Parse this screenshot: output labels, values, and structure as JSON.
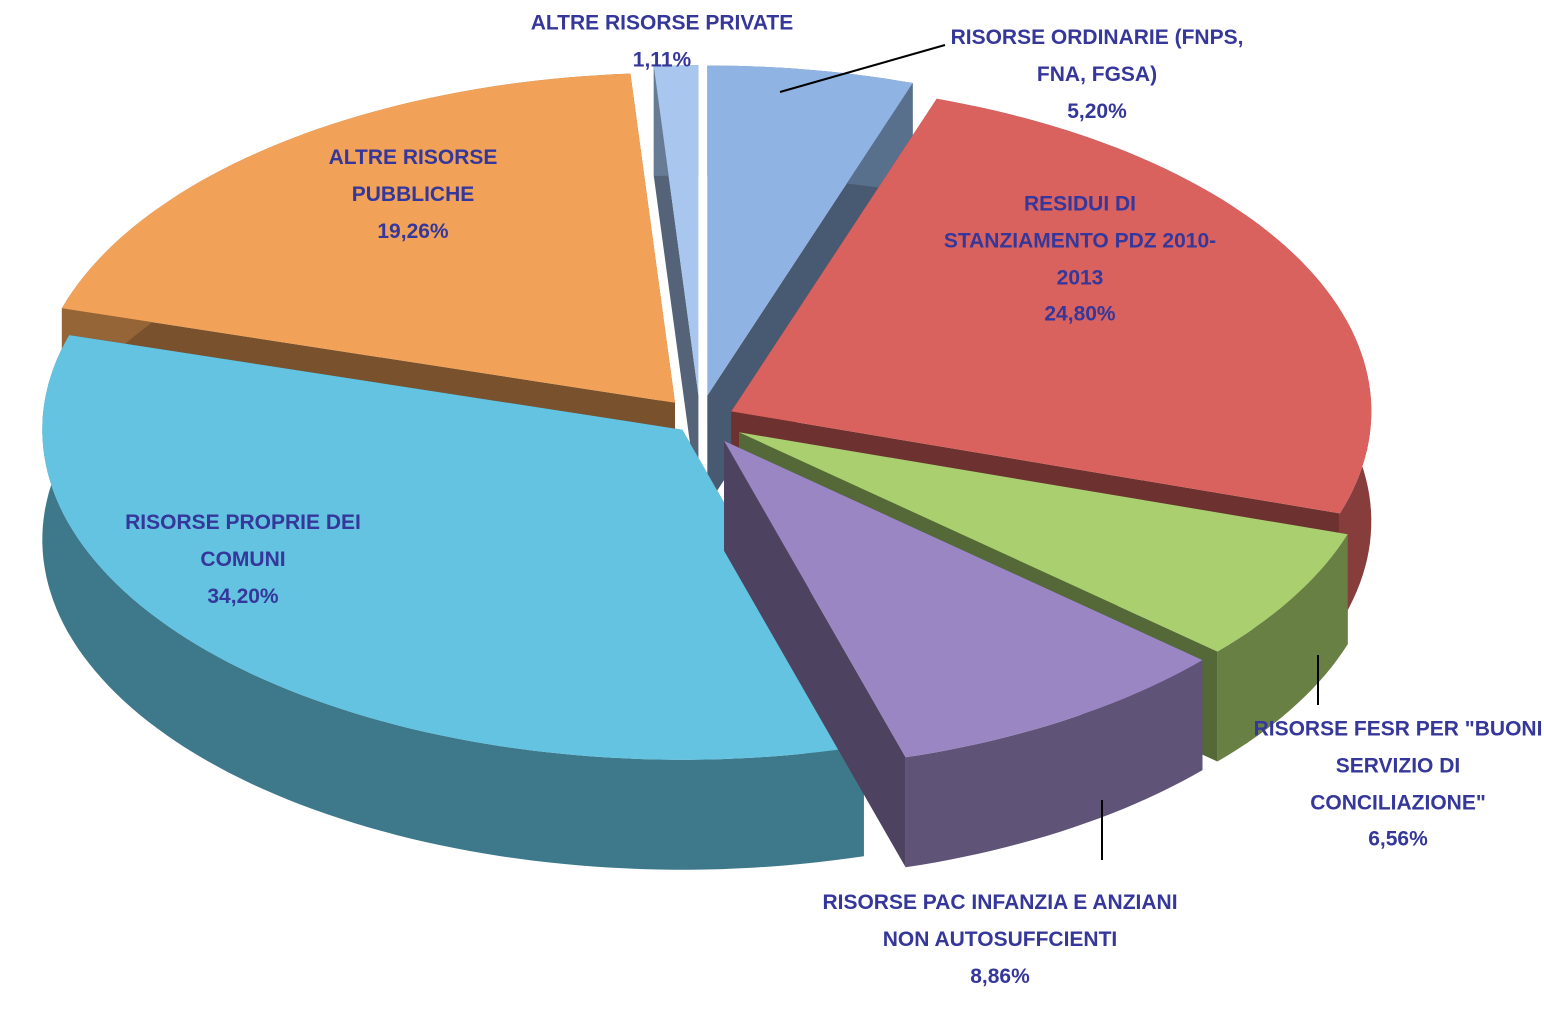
{
  "chart_data": {
    "type": "pie",
    "categories": [
      "RISORSE ORDINARIE (FNPS, FNA, FGSA)",
      "RESIDUI DI STANZIAMENTO PDZ 2010-2013",
      "RISORSE FESR PER \"BUONI SERVIZIO DI CONCILIAZIONE\"",
      "RISORSE PAC INFANZIA E ANZIANI NON AUTOSUFFCIENTI",
      "RISORSE PROPRIE DEI COMUNI",
      "ALTRE RISORSE PUBBLICHE",
      "ALTRE RISORSE PRIVATE"
    ],
    "values": [
      5.2,
      24.8,
      6.56,
      8.86,
      34.2,
      19.26,
      1.11
    ],
    "value_labels": [
      "5,20%",
      "24,80%",
      "6,56%",
      "8,86%",
      "34,20%",
      "19,26%",
      "1,11%"
    ],
    "colors": [
      "#8fb4e3",
      "#d9625f",
      "#a9cf6e",
      "#9a86c2",
      "#63c3e0",
      "#f1a258",
      "#a8c6ee"
    ]
  }
}
